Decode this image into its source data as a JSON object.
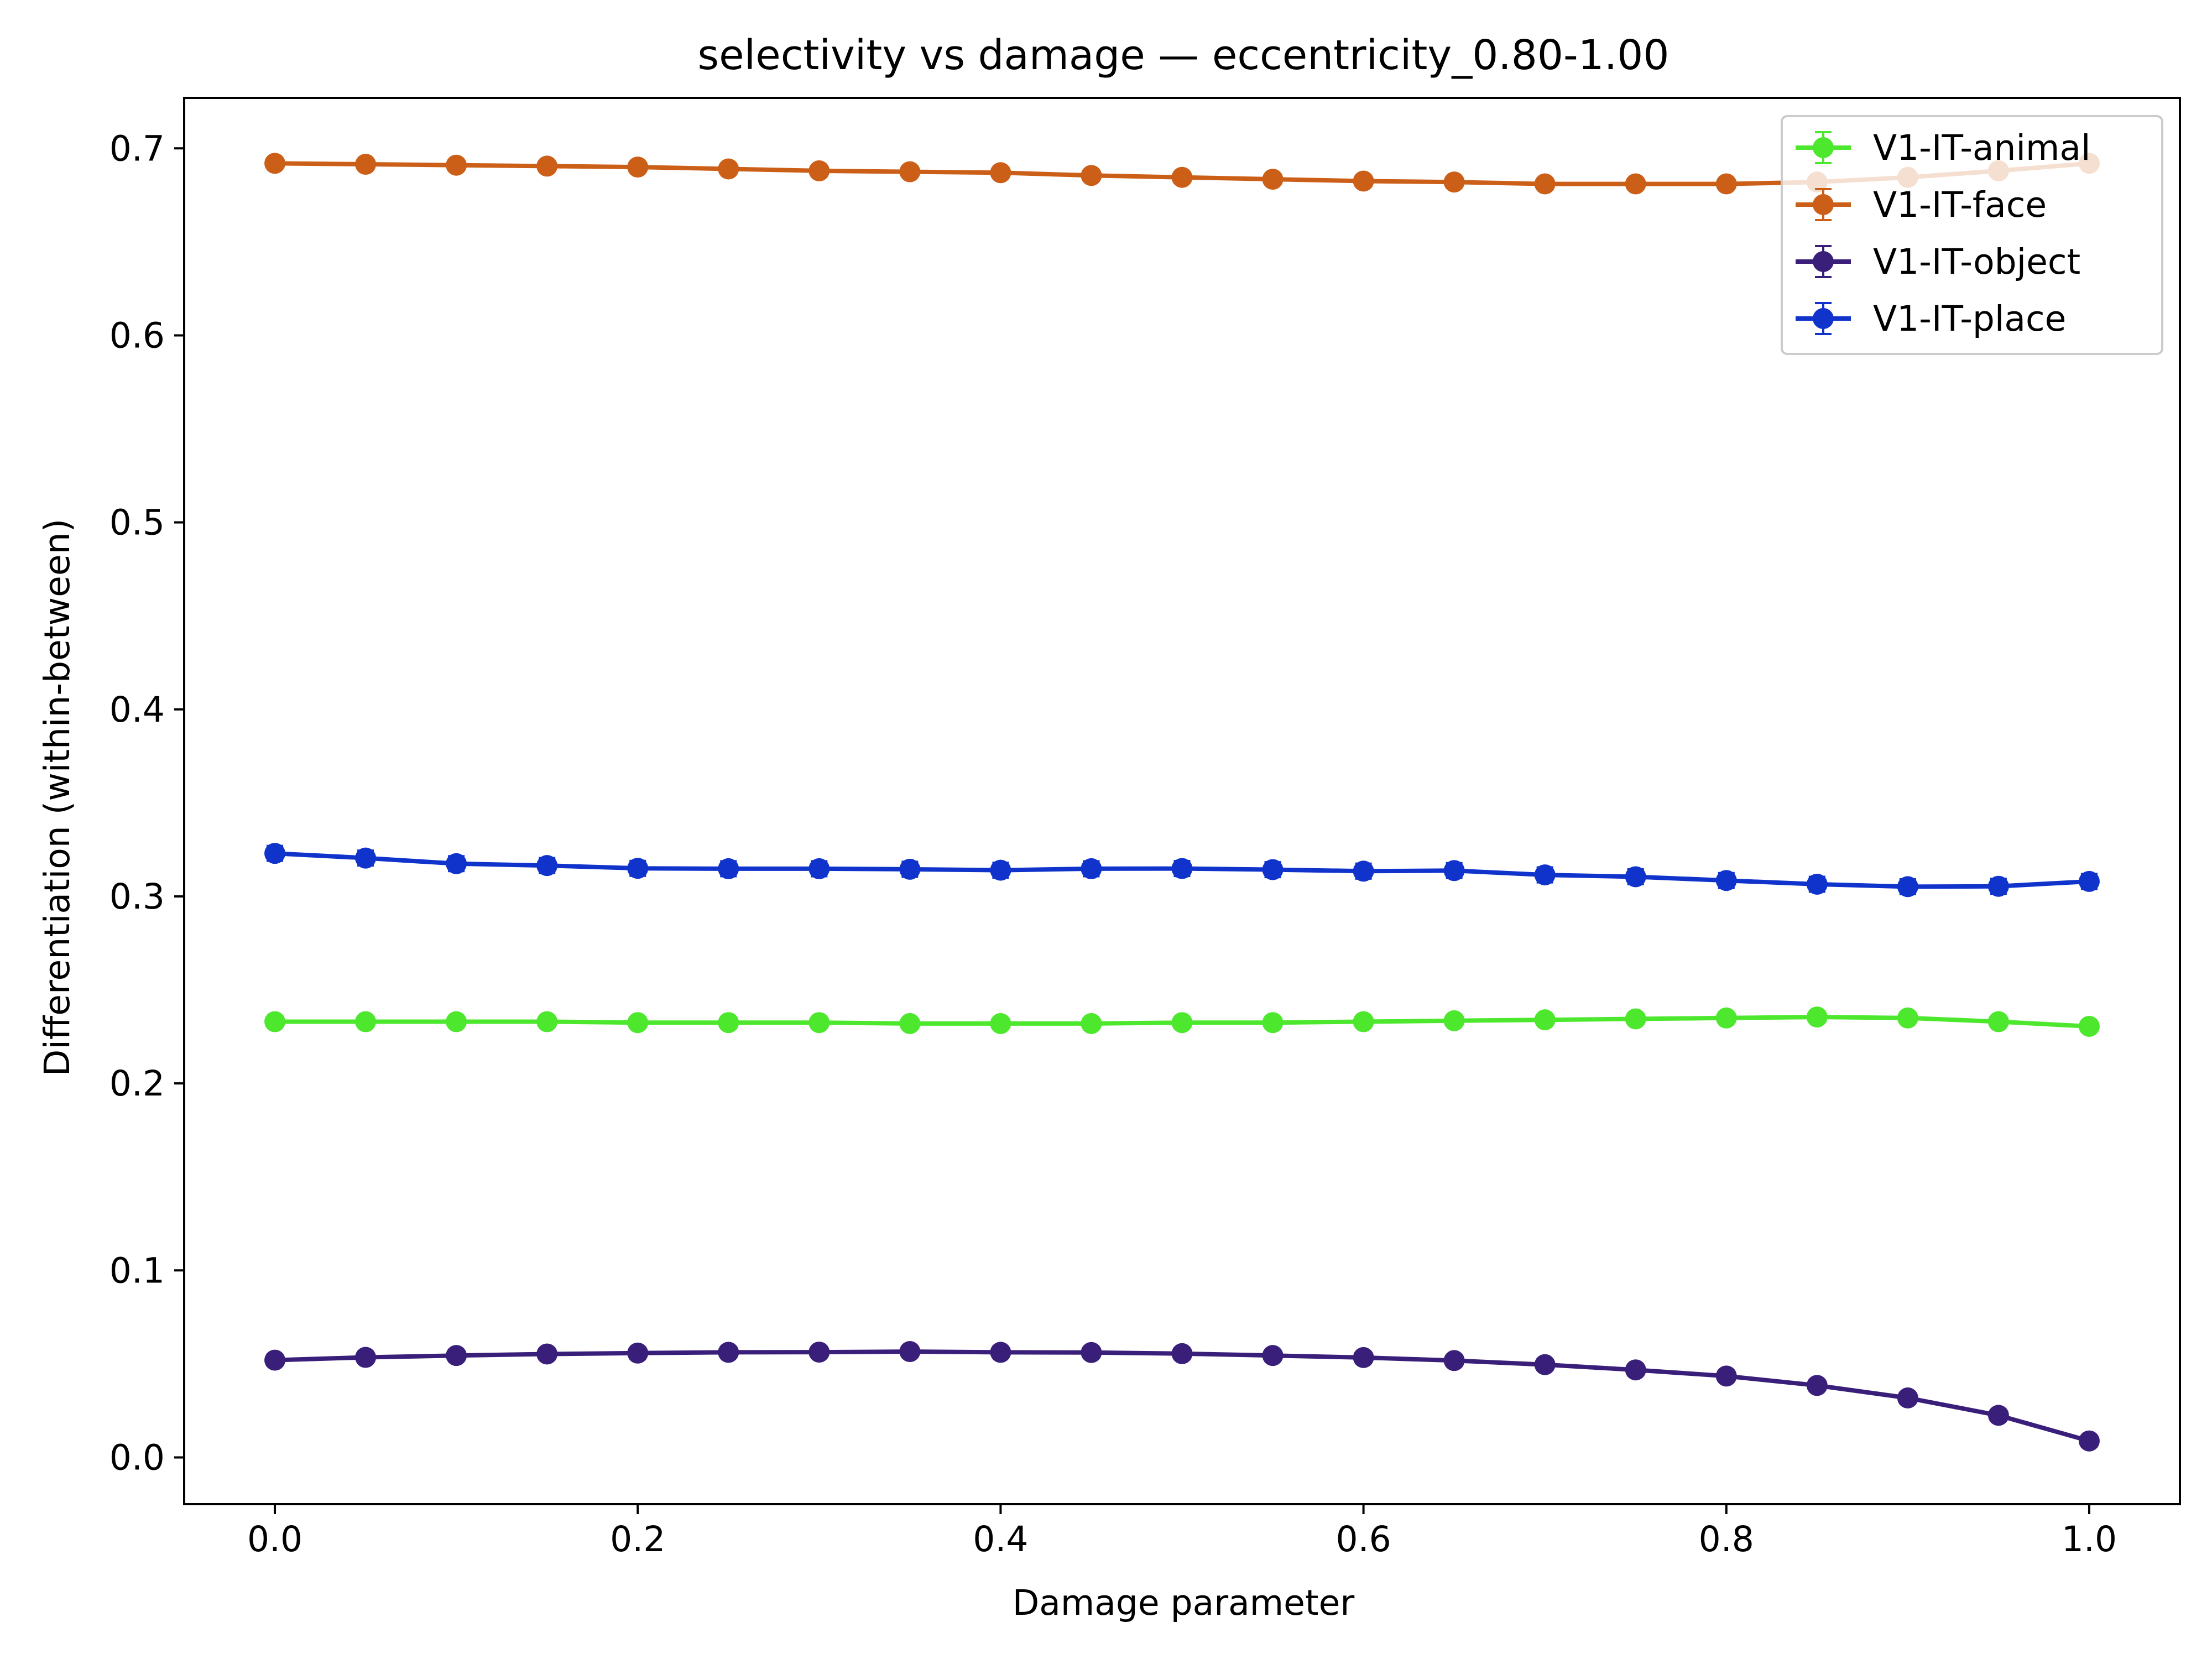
{
  "chart_data": {
    "type": "line",
    "title": "selectivity vs damage — eccentricity_0.80-1.00",
    "xlabel": "Damage parameter",
    "ylabel": "Differentiation (within-between)",
    "xlim": [
      -0.05,
      1.05
    ],
    "ylim": [
      -0.025,
      0.727
    ],
    "x_ticks": [
      0.0,
      0.2,
      0.4,
      0.6,
      0.8,
      1.0
    ],
    "x_tick_labels": [
      "0.0",
      "0.2",
      "0.4",
      "0.6",
      "0.8",
      "1.0"
    ],
    "y_ticks": [
      0.0,
      0.1,
      0.2,
      0.3,
      0.4,
      0.5,
      0.6,
      0.7
    ],
    "y_tick_labels": [
      "0.0",
      "0.1",
      "0.2",
      "0.3",
      "0.4",
      "0.5",
      "0.6",
      "0.7"
    ],
    "grid": false,
    "legend_position": "top-right",
    "x": [
      0.0,
      0.05,
      0.1,
      0.15,
      0.2,
      0.25,
      0.3,
      0.35,
      0.4,
      0.45,
      0.5,
      0.55,
      0.6,
      0.65,
      0.7,
      0.75,
      0.8,
      0.85,
      0.9,
      0.95,
      1.0
    ],
    "series": [
      {
        "name": "V1-IT-animal",
        "color": "#4de82e",
        "values": [
          0.233,
          0.233,
          0.233,
          0.233,
          0.2325,
          0.2325,
          0.2325,
          0.232,
          0.232,
          0.232,
          0.2325,
          0.2325,
          0.233,
          0.2335,
          0.234,
          0.2345,
          0.235,
          0.2355,
          0.235,
          0.233,
          0.2305
        ],
        "errors": [
          0.002,
          0.002,
          0.002,
          0.002,
          0.002,
          0.002,
          0.002,
          0.002,
          0.002,
          0.002,
          0.002,
          0.002,
          0.002,
          0.002,
          0.002,
          0.002,
          0.002,
          0.002,
          0.002,
          0.002,
          0.002
        ]
      },
      {
        "name": "V1-IT-face",
        "color": "#cc5f18",
        "values": [
          0.692,
          0.6915,
          0.691,
          0.6905,
          0.69,
          0.689,
          0.688,
          0.6875,
          0.687,
          0.6855,
          0.6845,
          0.6835,
          0.6825,
          0.682,
          0.681,
          0.681,
          0.681,
          0.682,
          0.6845,
          0.688,
          0.692
        ],
        "errors": [
          0.002,
          0.002,
          0.002,
          0.002,
          0.002,
          0.002,
          0.002,
          0.002,
          0.002,
          0.002,
          0.002,
          0.002,
          0.002,
          0.002,
          0.002,
          0.002,
          0.002,
          0.002,
          0.002,
          0.002,
          0.002
        ]
      },
      {
        "name": "V1-IT-object",
        "color": "#3a1f7a",
        "values": [
          0.052,
          0.0535,
          0.0545,
          0.0553,
          0.0558,
          0.0562,
          0.0563,
          0.0566,
          0.0562,
          0.0561,
          0.0555,
          0.0545,
          0.0534,
          0.0518,
          0.0496,
          0.0468,
          0.0435,
          0.0385,
          0.0318,
          0.0225,
          0.0088
        ],
        "errors": [
          0.003,
          0.003,
          0.003,
          0.003,
          0.003,
          0.003,
          0.003,
          0.003,
          0.003,
          0.003,
          0.003,
          0.003,
          0.003,
          0.003,
          0.003,
          0.003,
          0.003,
          0.003,
          0.003,
          0.003,
          0.003
        ]
      },
      {
        "name": "V1-IT-place",
        "color": "#1033cc",
        "values": [
          0.323,
          0.3205,
          0.3175,
          0.3165,
          0.315,
          0.3148,
          0.3148,
          0.3145,
          0.314,
          0.3148,
          0.3149,
          0.3143,
          0.3135,
          0.3138,
          0.3115,
          0.3105,
          0.3085,
          0.3065,
          0.3052,
          0.3054,
          0.308
        ],
        "errors": [
          0.004,
          0.004,
          0.004,
          0.004,
          0.004,
          0.004,
          0.004,
          0.004,
          0.004,
          0.004,
          0.004,
          0.004,
          0.004,
          0.004,
          0.004,
          0.004,
          0.004,
          0.004,
          0.004,
          0.004,
          0.004
        ]
      }
    ]
  }
}
